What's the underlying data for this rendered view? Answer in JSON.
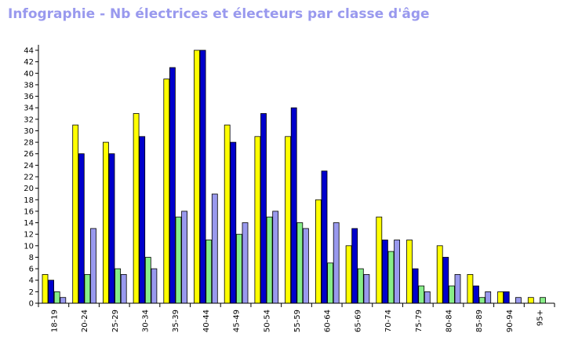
{
  "chart_data": {
    "type": "bar",
    "title": "Infographie - Nb électrices et électeurs par classe d'âge",
    "xlabel": "",
    "ylabel": "",
    "ylim": [
      0,
      46
    ],
    "yticks": [
      0,
      2,
      4,
      6,
      8,
      10,
      12,
      14,
      16,
      18,
      20,
      22,
      24,
      26,
      28,
      30,
      32,
      34,
      36,
      38,
      40,
      42,
      44
    ],
    "grid": false,
    "legend": "none",
    "categories": [
      "18-19",
      "20-24",
      "25-29",
      "30-34",
      "35-39",
      "40-44",
      "45-49",
      "50-54",
      "55-59",
      "60-64",
      "65-69",
      "70-74",
      "75-79",
      "80-84",
      "85-89",
      "90-94",
      "95+"
    ],
    "series": [
      {
        "color": "#ffff00",
        "values": [
          5,
          31,
          28,
          33,
          39,
          44,
          31,
          29,
          29,
          18,
          10,
          15,
          11,
          10,
          5,
          2,
          1
        ]
      },
      {
        "color": "#0000cc",
        "values": [
          4,
          26,
          26,
          29,
          41,
          44,
          28,
          33,
          34,
          23,
          13,
          11,
          6,
          8,
          3,
          2,
          0
        ]
      },
      {
        "color": "#88ee88",
        "values": [
          2,
          5,
          6,
          8,
          15,
          11,
          12,
          15,
          14,
          7,
          6,
          9,
          3,
          3,
          1,
          0,
          1
        ]
      },
      {
        "color": "#9999ee",
        "values": [
          1,
          13,
          5,
          6,
          16,
          19,
          14,
          16,
          13,
          14,
          5,
          11,
          2,
          5,
          2,
          1,
          0
        ]
      }
    ]
  }
}
